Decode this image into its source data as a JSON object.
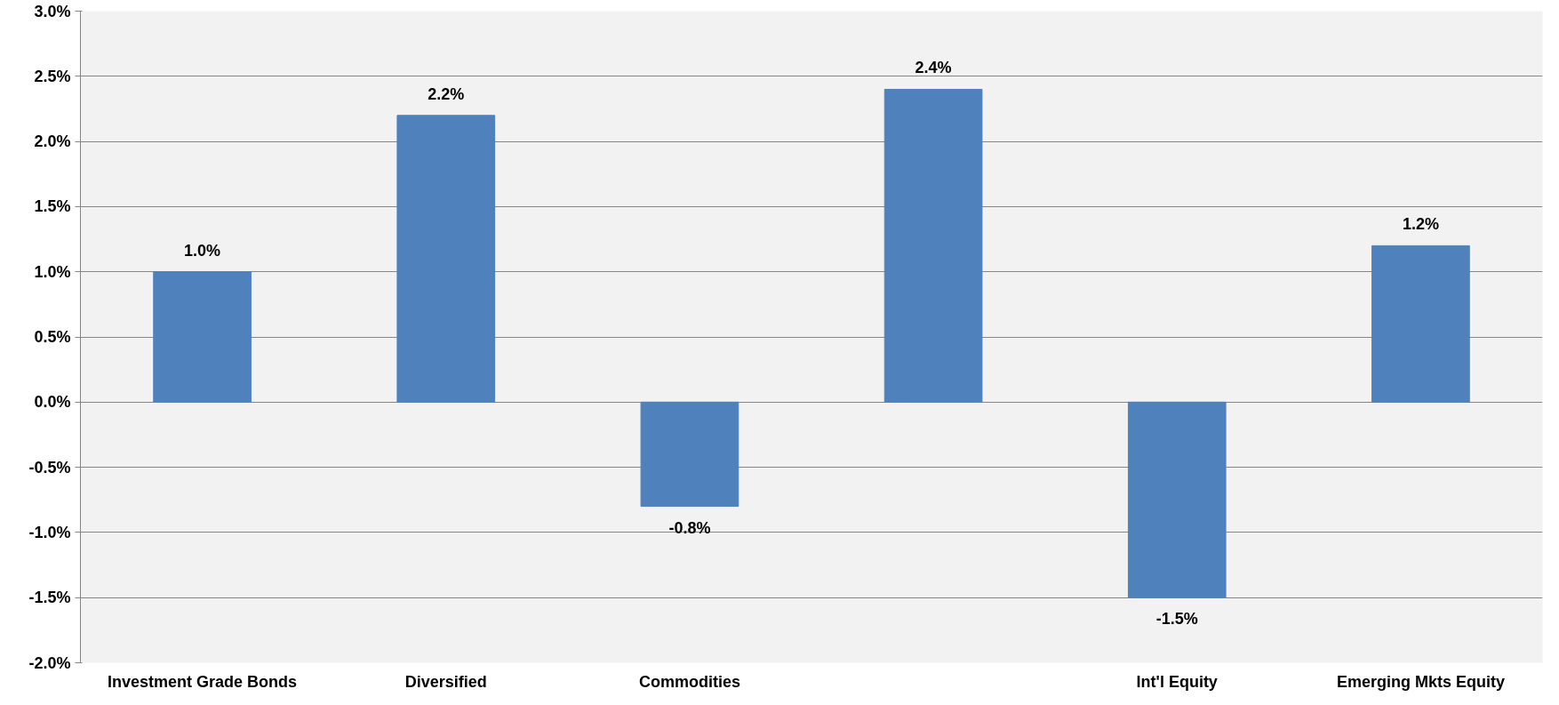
{
  "chart_data": {
    "type": "bar",
    "categories": [
      "Investment Grade Bonds",
      "Diversified",
      "Commodities",
      null,
      "Int'l Equity",
      "Emerging Mkts Equity"
    ],
    "values": [
      1.0,
      2.2,
      -0.8,
      2.4,
      -1.5,
      1.2
    ],
    "value_labels": [
      "1.0%",
      "2.2%",
      "-0.8%",
      "2.4%",
      "-1.5%",
      "1.2%"
    ],
    "color": "#4f81bd",
    "ylim": [
      -2.0,
      3.0
    ],
    "yticks": [
      {
        "value": -2.0,
        "label": "-2.0%"
      },
      {
        "value": -1.5,
        "label": "-1.5%"
      },
      {
        "value": -1.0,
        "label": "-1.0%"
      },
      {
        "value": -0.5,
        "label": "-0.5%"
      },
      {
        "value": 0.0,
        "label": "0.0%"
      },
      {
        "value": 0.5,
        "label": "0.5%"
      },
      {
        "value": 1.0,
        "label": "1.0%"
      },
      {
        "value": 1.5,
        "label": "1.5%"
      },
      {
        "value": 2.0,
        "label": "2.0%"
      },
      {
        "value": 2.5,
        "label": "2.5%"
      },
      {
        "value": 3.0,
        "label": "3.0%"
      }
    ],
    "grid": "y"
  }
}
